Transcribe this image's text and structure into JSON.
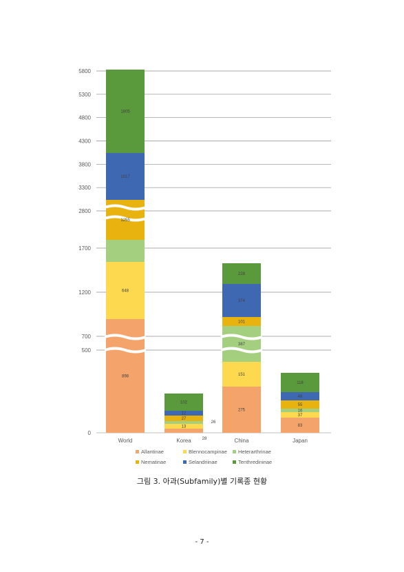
{
  "chart_data": {
    "type": "bar",
    "stacked": true,
    "broken_axis": true,
    "categories": [
      "World",
      "Korea",
      "China",
      "Japan"
    ],
    "y_ticks": [
      "0",
      "500",
      "700",
      "1200",
      "1700",
      "2800",
      "3300",
      "3800",
      "4300",
      "4800",
      "5300",
      "5800"
    ],
    "ylim": [
      0,
      5800
    ],
    "grid": true,
    "legend_position": "bottom",
    "series": [
      {
        "name": "Allantinae",
        "color": "#F4A46B",
        "values": [
          898,
          28,
          275,
          83
        ],
        "labels": [
          "898",
          "28",
          "275",
          "83"
        ]
      },
      {
        "name": "Blennocampinae",
        "color": "#FDD94F",
        "values": [
          648,
          13,
          151,
          37
        ],
        "labels": [
          "648",
          "13",
          "151",
          "37"
        ]
      },
      {
        "name": "Heterarthrinae",
        "color": "#A4CF7F",
        "values": [
          270,
          26,
          387,
          16
        ],
        "labels": [
          "",
          "26",
          "387",
          "16"
        ]
      },
      {
        "name": "Nematinae",
        "color": "#E8B30E",
        "values": [
          1255,
          27,
          101,
          55
        ],
        "labels": [
          "1255",
          "27",
          "101",
          "55"
        ]
      },
      {
        "name": "Selandriinae",
        "color": "#3F68B3",
        "values": [
          1017,
          12,
          374,
          48
        ],
        "labels": [
          "1017",
          "12",
          "374",
          "48"
        ]
      },
      {
        "name": "Tenthredininae",
        "color": "#5A9A3C",
        "values": [
          1805,
          102,
          228,
          118
        ],
        "labels": [
          "1805",
          "102",
          "228",
          "118"
        ]
      }
    ]
  },
  "caption": "그림 3. 아과(Subfamily)별 기록종 현황",
  "page_number": "- 7 -"
}
